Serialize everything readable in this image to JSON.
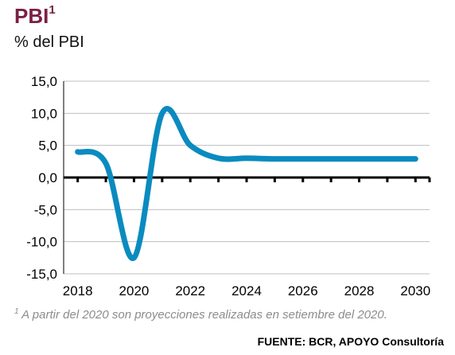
{
  "header": {
    "title": "PBI",
    "title_sup": "1",
    "subtitle": "% del PBI"
  },
  "footnote": {
    "sup": "1",
    "text": " A partir del 2020 son proyecciones realizadas en setiembre del 2020."
  },
  "source": "FUENTE: BCR, APOYO Consultoría",
  "colors": {
    "title": "#7a1f45",
    "line": "#0a8bbf",
    "grid": "#bfbfbf",
    "axis": "#000000"
  },
  "chart_data": {
    "type": "line",
    "title": "PBI",
    "ylabel": "% del PBI",
    "xlabel": "",
    "xlim": [
      2017.5,
      2030.5
    ],
    "ylim": [
      -15,
      15
    ],
    "xticks": [
      2018,
      2020,
      2022,
      2024,
      2026,
      2028,
      2030
    ],
    "xtick_labels": [
      "2018",
      "2020",
      "2022",
      "2024",
      "2026",
      "2028",
      "2030"
    ],
    "yticks": [
      15,
      10,
      5,
      0,
      -5,
      -10,
      -15
    ],
    "ytick_labels": [
      "15,0",
      "10,0",
      "5,0",
      "0,0",
      "-5,0",
      "-10,0",
      "-15,0"
    ],
    "grid": true,
    "legend": "none",
    "series": [
      {
        "name": "",
        "x": [
          2018,
          2019,
          2020,
          2021,
          2022,
          2023,
          2024,
          2025,
          2026,
          2027,
          2028,
          2029,
          2030
        ],
        "values": [
          4.0,
          2.2,
          -12.5,
          10.0,
          5.0,
          3.0,
          3.0,
          2.9,
          2.9,
          2.9,
          2.9,
          2.9,
          2.9
        ]
      }
    ]
  }
}
